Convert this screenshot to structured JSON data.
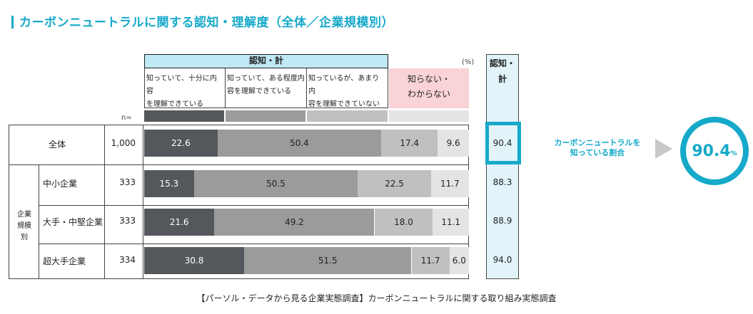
{
  "title": "カーボンニュートラルに関する認知・理解度（全体／企業規模別）",
  "header": {
    "group_label": "認知・計",
    "percent_unit": "(%)",
    "n_label": "n=",
    "columns": [
      {
        "line1": "知っていて、十分に内容",
        "line2": "を理解できている"
      },
      {
        "line1": "知っていて、ある程度内",
        "line2": "容を理解できている"
      },
      {
        "line1": "知っているが、あまり内",
        "line2": "容を理解できていない"
      }
    ],
    "unknown_line1": "知らない・",
    "unknown_line2": "わからない",
    "awareness_line1": "認知・",
    "awareness_line2": "計"
  },
  "group_label_line1": "企業",
  "group_label_line2": "規模別",
  "colors": {
    "c1": "#54585d",
    "c2": "#9b9b9b",
    "c3": "#c0c0c0",
    "c4": "#e4e4e4",
    "accent": "#16a9c9"
  },
  "chart_data": {
    "type": "bar",
    "stacked": true,
    "orientation": "horizontal",
    "title": "カーボンニュートラルに関する認知・理解度（全体／企業規模別）",
    "categories": [
      "全体",
      "中小企業",
      "大手・中堅企業",
      "超大手企業"
    ],
    "n": [
      "1,000",
      "333",
      "333",
      "334"
    ],
    "series": [
      {
        "name": "知っていて、十分に内容を理解できている",
        "values": [
          22.6,
          15.3,
          21.6,
          30.8
        ]
      },
      {
        "name": "知っていて、ある程度内容を理解できている",
        "values": [
          50.4,
          50.5,
          49.2,
          51.5
        ]
      },
      {
        "name": "知っているが、あまり内容を理解できていない",
        "values": [
          17.4,
          22.5,
          18.0,
          11.7
        ]
      },
      {
        "name": "知らない・わからない",
        "values": [
          9.6,
          11.7,
          11.1,
          6.0
        ]
      }
    ],
    "awareness_total": [
      "90.4",
      "88.3",
      "88.9",
      "94.0"
    ],
    "xlim": [
      0,
      100
    ]
  },
  "callout": {
    "line1": "カーボンニュートラルを",
    "line2": "知っている割合",
    "value": "90.4",
    "unit": "%"
  },
  "footer": "【パーソル・データから見る企業実態調査】カーボンニュートラルに関する取り組み実態調査"
}
